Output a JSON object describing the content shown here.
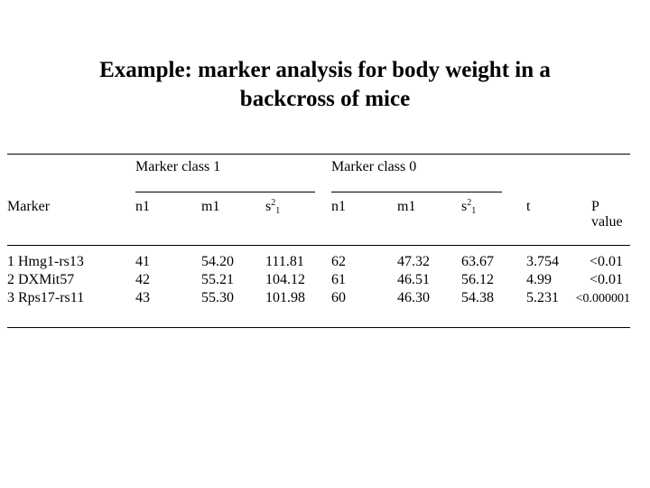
{
  "slide": {
    "title_line1": "Example: marker analysis for body weight in a",
    "title_line2": "backcross of mice"
  },
  "table": {
    "group_headers": [
      "Marker class 1",
      "Marker class 0"
    ],
    "columns": {
      "marker": "Marker",
      "n1": "n1",
      "m1": "m1",
      "s_base": "s",
      "s_sup": "2",
      "s_sub": "1",
      "t": "t",
      "p_line1": "P",
      "p_line2": "value"
    },
    "rows": [
      {
        "marker": "1 Hmg1-rs13",
        "c1_n1": "41",
        "c1_m1": "54.20",
        "c1_s2": "111.81",
        "c0_n1": "62",
        "c0_m1": "47.32",
        "c0_s2": "63.67",
        "t": "3.754",
        "p": "<0.01"
      },
      {
        "marker": "2 DXMit57",
        "c1_n1": "42",
        "c1_m1": "55.21",
        "c1_s2": "104.12",
        "c0_n1": "61",
        "c0_m1": "46.51",
        "c0_s2": "56.12",
        "t": "4.99",
        "p": "<0.01"
      },
      {
        "marker": "3 Rps17-rs11",
        "c1_n1": "43",
        "c1_m1": "55.30",
        "c1_s2": "101.98",
        "c0_n1": "60",
        "c0_m1": "46.30",
        "c0_s2": "54.38",
        "t": "5.231",
        "p": "<0.000001"
      }
    ]
  }
}
